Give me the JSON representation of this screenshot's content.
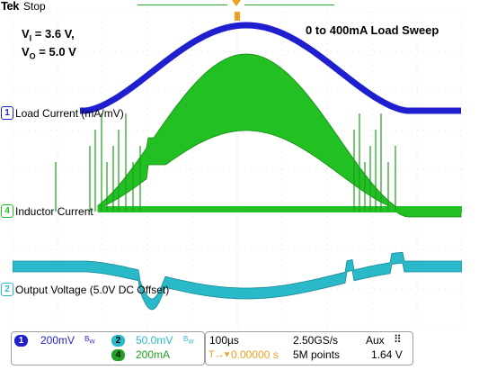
{
  "header": {
    "brand": "Tek",
    "state": "Stop"
  },
  "annotation": {
    "vin_label": "V",
    "vin_sub": "I",
    "vin_value": " = 3.6 V,",
    "vout_label": "V",
    "vout_sub": "O",
    "vout_value": " = 5.0 V",
    "sweep": "0 to 400mA Load Sweep"
  },
  "channels": [
    {
      "num": "1",
      "label": "Load Current (mA/mV)",
      "color": "#1f1fd0"
    },
    {
      "num": "4",
      "label": "Inductor Current",
      "color": "#22c022"
    },
    {
      "num": "2",
      "label": "Output Voltage (5.0V DC Offset)",
      "color": "#2ab9c8"
    }
  ],
  "readout": {
    "ch1_num": "1",
    "ch1_scale": "200mV",
    "ch1_bw": "B_W",
    "ch2_num": "2",
    "ch2_scale": "50.0mV",
    "ch2_bw": "B_W",
    "ch4_num": "4",
    "ch4_scale": "200mA",
    "timebase": "100µs",
    "sample_rate": "2.50GS/s",
    "trigger_pos": "0.00000 s",
    "record_length": "5M points",
    "trigger_source": "Aux",
    "trigger_slope": "rising",
    "trigger_level": "1.64 V"
  },
  "colors": {
    "ch1": "#1f1fd0",
    "ch2": "#2ab9c8",
    "ch4": "#22c022",
    "trigger": "#f0a020",
    "grid": "#c8c8c8"
  }
}
